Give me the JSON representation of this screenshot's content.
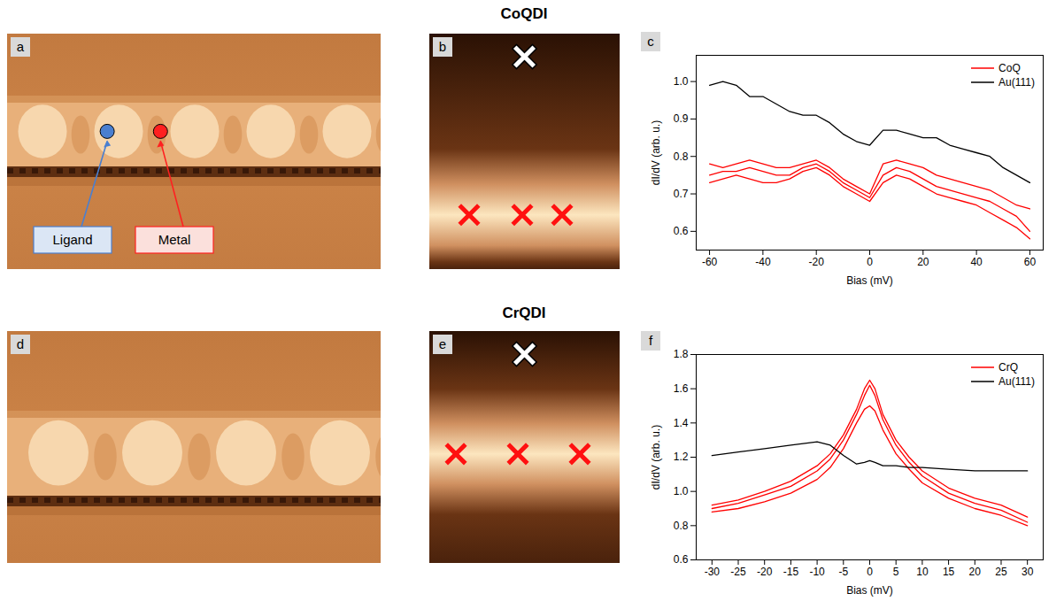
{
  "headings": [
    "CoQDI",
    "CrQDI"
  ],
  "images": [
    {
      "panel": "a",
      "labels": [
        "Ligand",
        "Metal"
      ]
    },
    {
      "panel": "b"
    },
    {
      "panel": "d"
    },
    {
      "panel": "e"
    }
  ],
  "chart_data": [
    {
      "panel": "c",
      "type": "line",
      "xlabel": "Bias (mV)",
      "ylabel": "dI/dV (arb. u.)",
      "x": [
        -60,
        -55,
        -50,
        -45,
        -40,
        -35,
        -30,
        -25,
        -20,
        -15,
        -10,
        -5,
        0,
        5,
        10,
        15,
        20,
        25,
        30,
        35,
        40,
        45,
        50,
        55,
        60
      ],
      "series": [
        {
          "name": "CoQ",
          "color": "#ff0000",
          "values": [
            0.78,
            0.77,
            0.78,
            0.79,
            0.78,
            0.77,
            0.77,
            0.78,
            0.79,
            0.77,
            0.74,
            0.72,
            0.7,
            0.78,
            0.79,
            0.78,
            0.77,
            0.75,
            0.74,
            0.73,
            0.72,
            0.71,
            0.69,
            0.67,
            0.66
          ]
        },
        {
          "name": "CoQ",
          "color": "#ff0000",
          "values": [
            0.75,
            0.76,
            0.76,
            0.77,
            0.76,
            0.75,
            0.75,
            0.77,
            0.78,
            0.76,
            0.73,
            0.71,
            0.69,
            0.75,
            0.77,
            0.76,
            0.74,
            0.72,
            0.71,
            0.7,
            0.69,
            0.68,
            0.66,
            0.64,
            0.6
          ]
        },
        {
          "name": "CoQ",
          "color": "#ff0000",
          "values": [
            0.73,
            0.74,
            0.75,
            0.74,
            0.73,
            0.73,
            0.74,
            0.76,
            0.77,
            0.75,
            0.72,
            0.7,
            0.68,
            0.73,
            0.75,
            0.74,
            0.72,
            0.7,
            0.69,
            0.68,
            0.67,
            0.65,
            0.63,
            0.61,
            0.58
          ]
        },
        {
          "name": "Au(111)",
          "color": "#000000",
          "values": [
            0.99,
            1.0,
            0.99,
            0.96,
            0.96,
            0.94,
            0.92,
            0.91,
            0.91,
            0.89,
            0.86,
            0.84,
            0.83,
            0.87,
            0.87,
            0.86,
            0.85,
            0.85,
            0.83,
            0.82,
            0.81,
            0.8,
            0.77,
            0.75,
            0.73
          ]
        }
      ],
      "xlim": [
        -65,
        65
      ],
      "xticks": [
        -60,
        -40,
        -20,
        0,
        20,
        40,
        60
      ],
      "ylim": [
        0.55,
        1.07
      ],
      "yticks": [
        0.6,
        0.7,
        0.8,
        0.9,
        {
          "value": 1,
          "label": "1.0"
        }
      ],
      "legend": "top-right"
    },
    {
      "panel": "f",
      "type": "line",
      "xlabel": "Bias (mV)",
      "ylabel": "dI/dV (arb. u.)",
      "x": [
        -30,
        -25,
        -20,
        -15,
        -10,
        -7.5,
        -5,
        -2.5,
        -1,
        0,
        1,
        2.5,
        5,
        7.5,
        10,
        15,
        20,
        25,
        30
      ],
      "series": [
        {
          "name": "CrQ",
          "color": "#ff0000",
          "values": [
            0.92,
            0.95,
            1.0,
            1.06,
            1.15,
            1.22,
            1.33,
            1.48,
            1.6,
            1.65,
            1.6,
            1.45,
            1.3,
            1.2,
            1.12,
            1.02,
            0.96,
            0.92,
            0.85
          ]
        },
        {
          "name": "CrQ",
          "color": "#ff0000",
          "values": [
            0.9,
            0.93,
            0.98,
            1.03,
            1.12,
            1.19,
            1.3,
            1.45,
            1.56,
            1.62,
            1.56,
            1.42,
            1.27,
            1.17,
            1.09,
            0.99,
            0.93,
            0.89,
            0.82
          ]
        },
        {
          "name": "CrQ",
          "color": "#ff0000",
          "values": [
            0.88,
            0.9,
            0.94,
            0.99,
            1.07,
            1.14,
            1.25,
            1.4,
            1.48,
            1.5,
            1.47,
            1.36,
            1.22,
            1.13,
            1.05,
            0.96,
            0.9,
            0.86,
            0.8
          ]
        },
        {
          "name": "Au(111)",
          "color": "#000000",
          "values": [
            1.21,
            1.23,
            1.25,
            1.27,
            1.29,
            1.27,
            1.21,
            1.16,
            1.17,
            1.18,
            1.17,
            1.15,
            1.15,
            1.14,
            1.14,
            1.13,
            1.12,
            1.12,
            1.12
          ]
        }
      ],
      "xlim": [
        -33,
        33
      ],
      "xticks": [
        -30,
        -25,
        -20,
        -15,
        -10,
        -5,
        0,
        5,
        10,
        15,
        20,
        25,
        30
      ],
      "ylim": [
        0.6,
        1.8
      ],
      "yticks": [
        0.6,
        0.8,
        {
          "value": 1,
          "label": "1.0"
        },
        1.2,
        1.4,
        1.6,
        1.8
      ],
      "legend": "top-right"
    }
  ]
}
